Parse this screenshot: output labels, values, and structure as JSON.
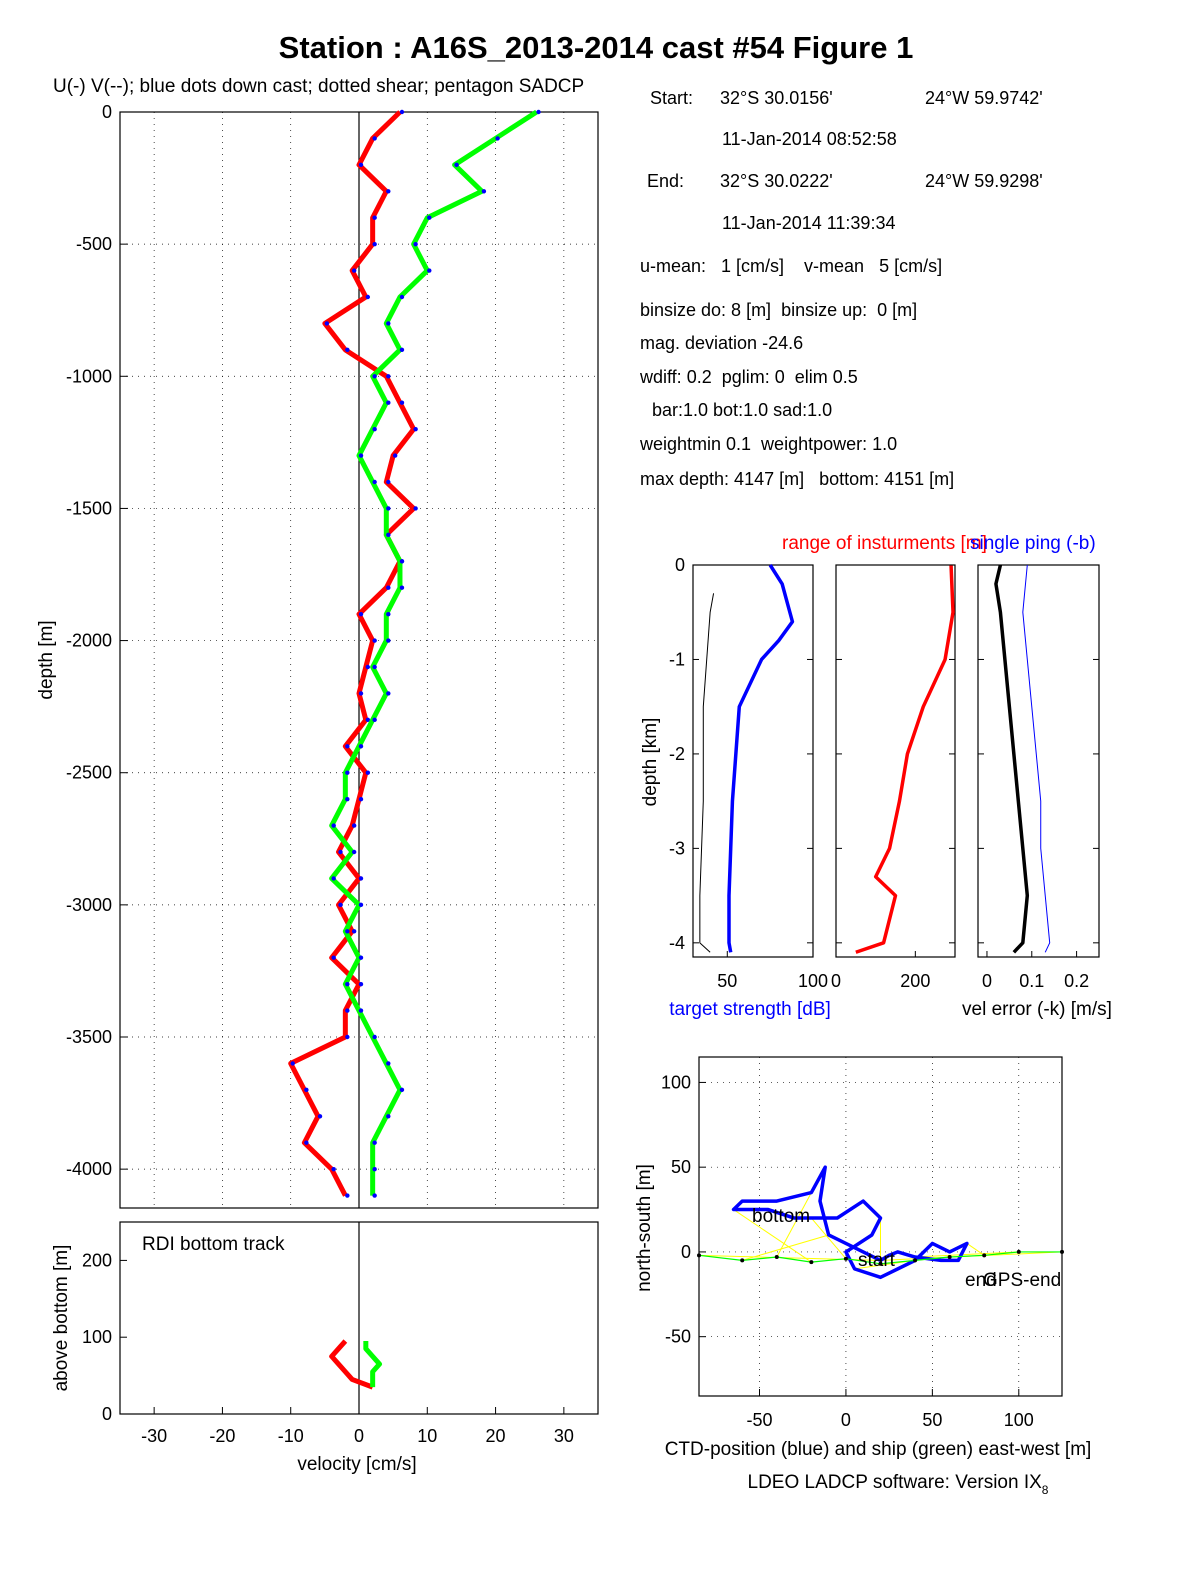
{
  "title": "Station : A16S_2013-2014 cast #54  Figure 1",
  "legend_text": "U(-) V(--); blue dots down cast; dotted shear; pentagon SADCP",
  "info": {
    "start_label": "Start:",
    "start_lat": "32°S 30.0156'",
    "start_lon": "24°W 59.9742'",
    "start_time": "11-Jan-2014 08:52:58",
    "end_label": "End:",
    "end_lat": "32°S 30.0222'",
    "end_lon": "24°W 59.9298'",
    "end_time": "11-Jan-2014 11:39:34",
    "umean": "u-mean:   1 [cm/s]    v-mean   5 [cm/s]",
    "binsize": "binsize do: 8 [m]  binsize up:  0 [m]",
    "magdev": "mag. deviation -24.6",
    "wdiff": "wdiff: 0.2  pglim: 0  elim 0.5",
    "bar": "bar:1.0 bot:1.0 sad:1.0",
    "weight": "weightmin 0.1  weightpower: 1.0",
    "maxdepth": "max depth: 4147 [m]   bottom: 4151 [m]"
  },
  "colors": {
    "u": "#ff0000",
    "v": "#00ff00",
    "down": "#0000ff",
    "black": "#000000",
    "yellow": "#ffff00"
  },
  "chart_data": [
    {
      "type": "line",
      "panel": "velocity profile",
      "xlabel": "",
      "ylabel": "depth [m]",
      "xlim": [
        -35,
        35
      ],
      "ylim": [
        -4147,
        0
      ],
      "yticks": [
        0,
        -500,
        -1000,
        -1500,
        -2000,
        -2500,
        -3000,
        -3500,
        -4000
      ],
      "grid": true,
      "series": [
        {
          "color": "red",
          "depth": [
            0,
            -100,
            -200,
            -300,
            -400,
            -500,
            -600,
            -700,
            -800,
            -900,
            -1000,
            -1100,
            -1200,
            -1300,
            -1400,
            -1500,
            -1600,
            -1700,
            -1800,
            -1900,
            -2000,
            -2100,
            -2200,
            -2300,
            -2400,
            -2500,
            -2600,
            -2700,
            -2800,
            -2900,
            -3000,
            -3100,
            -3200,
            -3300,
            -3400,
            -3500,
            -3600,
            -3700,
            -3800,
            -3900,
            -4000,
            -4100
          ],
          "values": [
            6,
            2,
            0,
            4,
            2,
            2,
            -1,
            1,
            -5,
            -2,
            4,
            6,
            8,
            5,
            4,
            8,
            4,
            6,
            4,
            0,
            2,
            1,
            0,
            1,
            -2,
            1,
            0,
            -1,
            -3,
            0,
            -3,
            -1,
            -4,
            0,
            -2,
            -2,
            -10,
            -8,
            -6,
            -8,
            -4,
            -2
          ]
        },
        {
          "color": "green",
          "depth": [
            0,
            -100,
            -200,
            -300,
            -400,
            -500,
            -600,
            -700,
            -800,
            -900,
            -1000,
            -1100,
            -1200,
            -1300,
            -1400,
            -1500,
            -1600,
            -1700,
            -1800,
            -1900,
            -2000,
            -2100,
            -2200,
            -2300,
            -2400,
            -2500,
            -2600,
            -2700,
            -2800,
            -2900,
            -3000,
            -3100,
            -3200,
            -3300,
            -3400,
            -3500,
            -3600,
            -3700,
            -3800,
            -3900,
            -4000,
            -4100
          ],
          "values": [
            26,
            20,
            14,
            18,
            10,
            8,
            10,
            6,
            4,
            6,
            2,
            4,
            2,
            0,
            2,
            4,
            4,
            6,
            6,
            4,
            4,
            2,
            4,
            2,
            0,
            -2,
            -2,
            -4,
            -1,
            -4,
            0,
            -2,
            0,
            -2,
            0,
            2,
            4,
            6,
            4,
            2,
            2,
            2
          ]
        }
      ]
    },
    {
      "type": "line",
      "panel": "RDI bottom track",
      "annotation": "RDI bottom track",
      "xlabel": "velocity [cm/s]",
      "ylabel": "above bottom [m]",
      "xlim": [
        -35,
        35
      ],
      "ylim": [
        0,
        250
      ],
      "xticks": [
        -30,
        -20,
        -10,
        0,
        10,
        20,
        30
      ],
      "yticks": [
        0,
        100,
        200
      ],
      "series": [
        {
          "color": "red",
          "height": [
            95,
            85,
            75,
            65,
            55,
            45,
            35
          ],
          "values": [
            -2,
            -3,
            -4,
            -3,
            -2,
            -1,
            2
          ]
        },
        {
          "color": "green",
          "height": [
            95,
            85,
            75,
            65,
            55,
            45,
            35
          ],
          "values": [
            1,
            1,
            2,
            3,
            2,
            2,
            2
          ]
        }
      ]
    },
    {
      "type": "line",
      "panel": "target strength",
      "title": "range of insturments [m]",
      "title2": "single ping (-b)",
      "xlabel": "target strength [dB]",
      "ylabel": "depth [km]",
      "xlim": [
        30,
        100
      ],
      "ylim": [
        -4.15,
        0
      ],
      "xticks": [
        50,
        100
      ],
      "yticks": [
        0,
        -1,
        -2,
        -3,
        -4
      ],
      "series": [
        {
          "color": "blue",
          "depth": [
            0,
            -0.2,
            -0.4,
            -0.6,
            -0.8,
            -1.0,
            -1.5,
            -2.0,
            -2.5,
            -3.0,
            -3.5,
            -4.0,
            -4.1
          ],
          "values": [
            75,
            82,
            85,
            88,
            80,
            70,
            57,
            55,
            53,
            52,
            51,
            51,
            52
          ]
        },
        {
          "color": "black",
          "depth": [
            -0.3,
            -0.5,
            -1.0,
            -1.5,
            -2.0,
            -2.5,
            -3.0,
            -3.5,
            -4.0,
            -4.1
          ],
          "values": [
            42,
            40,
            38,
            36,
            36,
            36,
            35,
            34,
            34,
            40
          ]
        }
      ]
    },
    {
      "type": "line",
      "panel": "range",
      "xlim": [
        0,
        300
      ],
      "ylim": [
        -4.15,
        0
      ],
      "xticks": [
        0,
        200
      ],
      "series": [
        {
          "color": "red",
          "depth": [
            0,
            -0.5,
            -1.0,
            -1.5,
            -2.0,
            -2.5,
            -3.0,
            -3.3,
            -3.5,
            -4.0,
            -4.1
          ],
          "values": [
            290,
            295,
            275,
            220,
            180,
            160,
            135,
            100,
            150,
            120,
            50
          ]
        }
      ]
    },
    {
      "type": "line",
      "panel": "vel error",
      "xlabel": "vel error (-k) [m/s]",
      "xlim": [
        -0.02,
        0.25
      ],
      "ylim": [
        -4.15,
        0
      ],
      "xticks": [
        0,
        0.1,
        0.2
      ],
      "series": [
        {
          "color": "black",
          "depth": [
            0,
            -0.2,
            -0.5,
            -1.0,
            -1.5,
            -2.0,
            -2.5,
            -3.0,
            -3.5,
            -4.0,
            -4.1
          ],
          "values": [
            0.03,
            0.02,
            0.03,
            0.04,
            0.05,
            0.06,
            0.07,
            0.08,
            0.09,
            0.08,
            0.06
          ]
        },
        {
          "color": "blue",
          "depth": [
            0,
            -0.5,
            -1.0,
            -1.5,
            -2.0,
            -2.5,
            -3.0,
            -3.5,
            -4.0,
            -4.1
          ],
          "values": [
            0.09,
            0.08,
            0.09,
            0.1,
            0.11,
            0.12,
            0.12,
            0.13,
            0.14,
            0.13
          ]
        }
      ]
    },
    {
      "type": "line",
      "panel": "position",
      "xlabel": "CTD-position (blue) and ship (green) east-west [m]",
      "ylabel": "north-south [m]",
      "xlim": [
        -85,
        125
      ],
      "ylim": [
        -85,
        115
      ],
      "xticks": [
        -50,
        0,
        50,
        100
      ],
      "yticks": [
        100,
        50,
        0,
        -50
      ],
      "annotations": [
        "bottom",
        "start",
        "end",
        "GPS-end"
      ],
      "series": [
        {
          "color": "blue",
          "x": [
            20,
            10,
            0,
            -10,
            -15,
            -12,
            -20,
            -40,
            -60,
            -65,
            -45,
            -30,
            -20,
            -5,
            10,
            20,
            15,
            0,
            5,
            20,
            30,
            40,
            50,
            60,
            70,
            65,
            55,
            40,
            30,
            25,
            20
          ],
          "y": [
            -5,
            0,
            5,
            10,
            30,
            50,
            35,
            30,
            30,
            25,
            25,
            20,
            20,
            20,
            30,
            20,
            10,
            0,
            -10,
            -15,
            -10,
            -5,
            5,
            0,
            5,
            -5,
            -5,
            -3,
            0,
            -2,
            -5
          ]
        },
        {
          "color": "green",
          "x": [
            -85,
            -60,
            -40,
            -20,
            0,
            20,
            40,
            60,
            80,
            100,
            125
          ],
          "y": [
            -2,
            -5,
            -3,
            -6,
            -4,
            -7,
            -5,
            -3,
            -2,
            0,
            0
          ]
        }
      ]
    }
  ],
  "footer": "LDEO LADCP software: Version IX",
  "footer_sub": "8"
}
